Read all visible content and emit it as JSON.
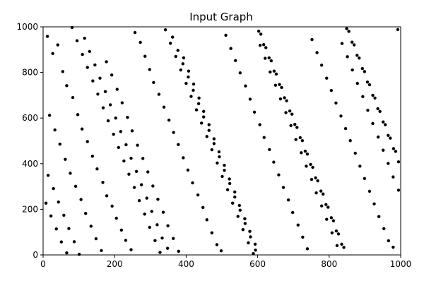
{
  "chart_data": {
    "type": "scatter",
    "title": "Input Graph",
    "xlabel": "",
    "ylabel": "",
    "xlim": [
      0,
      1000
    ],
    "ylim": [
      0,
      1000
    ],
    "xticks": [
      0,
      200,
      400,
      600,
      800,
      1000
    ],
    "yticks": [
      0,
      200,
      400,
      600,
      800,
      1000
    ],
    "grid": false,
    "marker_color": "#000000",
    "points": [
      [
        12,
        958
      ],
      [
        27,
        883
      ],
      [
        41,
        921
      ],
      [
        55,
        804
      ],
      [
        66,
        742
      ],
      [
        83,
        690
      ],
      [
        97,
        615
      ],
      [
        109,
        552
      ],
      [
        124,
        497
      ],
      [
        138,
        433
      ],
      [
        151,
        377
      ],
      [
        167,
        318
      ],
      [
        178,
        259
      ],
      [
        193,
        214
      ],
      [
        205,
        161
      ],
      [
        219,
        109
      ],
      [
        231,
        64
      ],
      [
        246,
        23
      ],
      [
        257,
        975
      ],
      [
        272,
        932
      ],
      [
        285,
        871
      ],
      [
        298,
        813
      ],
      [
        309,
        756
      ],
      [
        324,
        704
      ],
      [
        338,
        648
      ],
      [
        352,
        591
      ],
      [
        365,
        537
      ],
      [
        378,
        484
      ],
      [
        392,
        426
      ],
      [
        405,
        372
      ],
      [
        418,
        316
      ],
      [
        433,
        263
      ],
      [
        447,
        208
      ],
      [
        458,
        154
      ],
      [
        472,
        97
      ],
      [
        486,
        45
      ],
      [
        498,
        18
      ],
      [
        511,
        963
      ],
      [
        525,
        905
      ],
      [
        538,
        852
      ],
      [
        551,
        798
      ],
      [
        566,
        741
      ],
      [
        579,
        683
      ],
      [
        591,
        626
      ],
      [
        606,
        571
      ],
      [
        618,
        515
      ],
      [
        633,
        462
      ],
      [
        645,
        407
      ],
      [
        659,
        351
      ],
      [
        672,
        296
      ],
      [
        686,
        241
      ],
      [
        698,
        186
      ],
      [
        713,
        131
      ],
      [
        726,
        78
      ],
      [
        739,
        27
      ],
      [
        752,
        944
      ],
      [
        766,
        887
      ],
      [
        779,
        832
      ],
      [
        793,
        775
      ],
      [
        806,
        721
      ],
      [
        819,
        666
      ],
      [
        833,
        609
      ],
      [
        846,
        554
      ],
      [
        859,
        501
      ],
      [
        873,
        446
      ],
      [
        886,
        389
      ],
      [
        899,
        335
      ],
      [
        913,
        279
      ],
      [
        926,
        224
      ],
      [
        939,
        168
      ],
      [
        953,
        115
      ],
      [
        966,
        62
      ],
      [
        979,
        34
      ],
      [
        992,
        988
      ],
      [
        18,
        612
      ],
      [
        33,
        548
      ],
      [
        47,
        486
      ],
      [
        62,
        419
      ],
      [
        76,
        358
      ],
      [
        91,
        301
      ],
      [
        106,
        243
      ],
      [
        119,
        182
      ],
      [
        134,
        126
      ],
      [
        148,
        71
      ],
      [
        163,
        19
      ],
      [
        177,
        847
      ],
      [
        192,
        789
      ],
      [
        207,
        726
      ],
      [
        221,
        667
      ],
      [
        236,
        603
      ],
      [
        249,
        544
      ],
      [
        264,
        481
      ],
      [
        279,
        423
      ],
      [
        293,
        364
      ],
      [
        307,
        302
      ],
      [
        321,
        244
      ],
      [
        336,
        187
      ],
      [
        349,
        128
      ],
      [
        364,
        72
      ],
      [
        379,
        16
      ],
      [
        393,
        864
      ],
      [
        407,
        806
      ],
      [
        421,
        749
      ],
      [
        436,
        688
      ],
      [
        449,
        629
      ],
      [
        464,
        571
      ],
      [
        478,
        509
      ],
      [
        492,
        452
      ],
      [
        507,
        393
      ],
      [
        521,
        333
      ],
      [
        536,
        276
      ],
      [
        549,
        217
      ],
      [
        564,
        159
      ],
      [
        578,
        103
      ],
      [
        593,
        47
      ],
      [
        607,
        919
      ],
      [
        621,
        862
      ],
      [
        635,
        802
      ],
      [
        650,
        744
      ],
      [
        664,
        684
      ],
      [
        679,
        624
      ],
      [
        693,
        567
      ],
      [
        707,
        506
      ],
      [
        722,
        448
      ],
      [
        736,
        389
      ],
      [
        751,
        331
      ],
      [
        764,
        272
      ],
      [
        779,
        215
      ],
      [
        793,
        156
      ],
      [
        808,
        97
      ],
      [
        822,
        41
      ],
      [
        836,
        927
      ],
      [
        851,
        869
      ],
      [
        865,
        811
      ],
      [
        879,
        752
      ],
      [
        894,
        694
      ],
      [
        908,
        634
      ],
      [
        922,
        576
      ],
      [
        937,
        517
      ],
      [
        951,
        459
      ],
      [
        965,
        401
      ],
      [
        979,
        342
      ],
      [
        994,
        284
      ],
      [
        8,
        227
      ],
      [
        22,
        171
      ],
      [
        37,
        114
      ],
      [
        51,
        57
      ],
      [
        66,
        9
      ],
      [
        81,
        997
      ],
      [
        95,
        939
      ],
      [
        110,
        879
      ],
      [
        124,
        822
      ],
      [
        139,
        763
      ],
      [
        153,
        705
      ],
      [
        168,
        645
      ],
      [
        182,
        588
      ],
      [
        197,
        529
      ],
      [
        211,
        471
      ],
      [
        226,
        412
      ],
      [
        240,
        354
      ],
      [
        255,
        296
      ],
      [
        269,
        238
      ],
      [
        284,
        179
      ],
      [
        298,
        121
      ],
      [
        313,
        63
      ],
      [
        327,
        11
      ],
      [
        342,
        987
      ],
      [
        356,
        928
      ],
      [
        371,
        870
      ],
      [
        385,
        811
      ],
      [
        400,
        752
      ],
      [
        414,
        695
      ],
      [
        429,
        636
      ],
      [
        443,
        578
      ],
      [
        458,
        519
      ],
      [
        472,
        461
      ],
      [
        487,
        403
      ],
      [
        501,
        344
      ],
      [
        516,
        286
      ],
      [
        530,
        227
      ],
      [
        545,
        169
      ],
      [
        559,
        111
      ],
      [
        574,
        53
      ],
      [
        588,
        6
      ],
      [
        603,
        981
      ],
      [
        617,
        922
      ],
      [
        632,
        864
      ],
      [
        646,
        806
      ],
      [
        661,
        747
      ],
      [
        675,
        689
      ],
      [
        690,
        631
      ],
      [
        704,
        572
      ],
      [
        719,
        514
      ],
      [
        733,
        455
      ],
      [
        748,
        397
      ],
      [
        762,
        338
      ],
      [
        777,
        280
      ],
      [
        791,
        221
      ],
      [
        806,
        163
      ],
      [
        820,
        105
      ],
      [
        835,
        47
      ],
      [
        849,
        992
      ],
      [
        864,
        933
      ],
      [
        878,
        875
      ],
      [
        893,
        817
      ],
      [
        907,
        758
      ],
      [
        922,
        700
      ],
      [
        936,
        641
      ],
      [
        951,
        583
      ],
      [
        965,
        524
      ],
      [
        980,
        466
      ],
      [
        994,
        408
      ],
      [
        14,
        349
      ],
      [
        29,
        291
      ],
      [
        43,
        232
      ],
      [
        58,
        174
      ],
      [
        72,
        116
      ],
      [
        87,
        58
      ],
      [
        101,
        3
      ],
      [
        116,
        950
      ],
      [
        130,
        892
      ],
      [
        145,
        833
      ],
      [
        159,
        775
      ],
      [
        174,
        716
      ],
      [
        188,
        658
      ],
      [
        203,
        600
      ],
      [
        217,
        541
      ],
      [
        232,
        483
      ],
      [
        246,
        424
      ],
      [
        261,
        366
      ],
      [
        275,
        308
      ],
      [
        290,
        249
      ],
      [
        304,
        191
      ],
      [
        319,
        132
      ],
      [
        333,
        74
      ],
      [
        348,
        29
      ],
      [
        362,
        955
      ],
      [
        377,
        897
      ],
      [
        391,
        838
      ],
      [
        406,
        780
      ],
      [
        420,
        722
      ],
      [
        435,
        663
      ],
      [
        449,
        605
      ],
      [
        464,
        546
      ],
      [
        478,
        488
      ],
      [
        493,
        430
      ],
      [
        507,
        371
      ],
      [
        522,
        313
      ],
      [
        536,
        254
      ],
      [
        551,
        196
      ],
      [
        565,
        138
      ],
      [
        580,
        79
      ],
      [
        594,
        21
      ],
      [
        609,
        968
      ],
      [
        623,
        909
      ],
      [
        638,
        851
      ],
      [
        652,
        793
      ],
      [
        667,
        734
      ],
      [
        681,
        676
      ],
      [
        696,
        617
      ],
      [
        710,
        559
      ],
      [
        725,
        501
      ],
      [
        739,
        442
      ],
      [
        754,
        384
      ],
      [
        768,
        325
      ],
      [
        783,
        267
      ],
      [
        797,
        209
      ],
      [
        812,
        150
      ],
      [
        826,
        92
      ],
      [
        841,
        33
      ],
      [
        855,
        980
      ],
      [
        870,
        921
      ],
      [
        884,
        863
      ],
      [
        899,
        804
      ],
      [
        913,
        746
      ],
      [
        928,
        688
      ],
      [
        942,
        629
      ],
      [
        957,
        571
      ],
      [
        971,
        512
      ],
      [
        986,
        454
      ]
    ]
  }
}
